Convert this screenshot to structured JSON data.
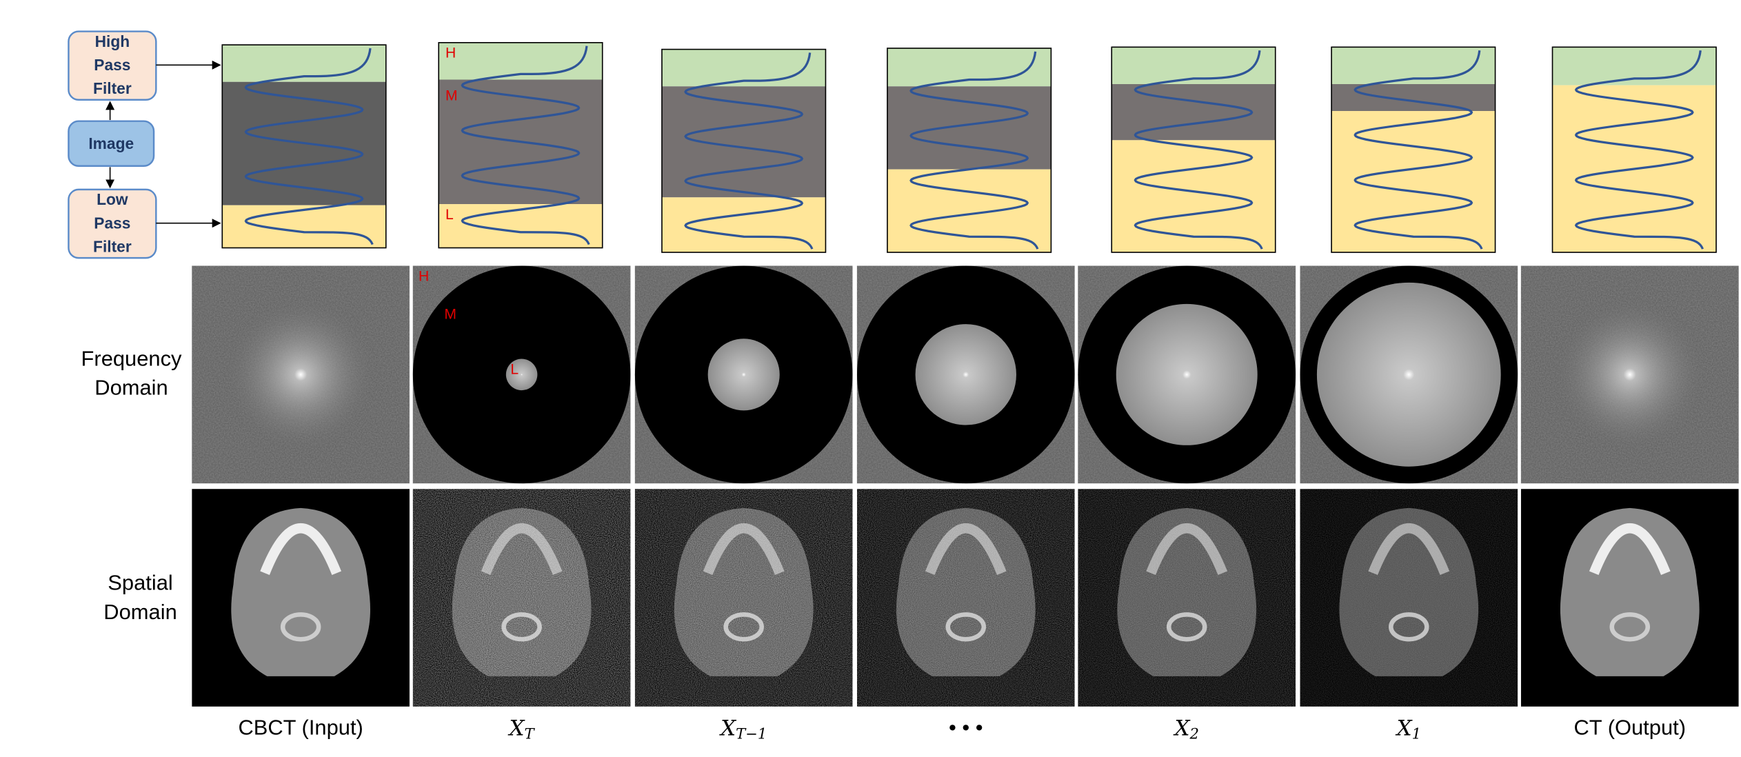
{
  "filter_boxes": {
    "high_pass": [
      "High",
      "Pass",
      "Filter"
    ],
    "image": "Image",
    "low_pass": [
      "Low",
      "Pass",
      "Filter"
    ]
  },
  "band_labels": [
    "H",
    "M",
    "L"
  ],
  "row_labels": {
    "frequency": [
      "Frequency",
      "Domain"
    ],
    "spatial": [
      "Spatial",
      "Domain"
    ]
  },
  "columns": [
    {
      "text": "CBCT (Input)"
    },
    {
      "base": "X",
      "sub": "T"
    },
    {
      "base": "X",
      "sub": "T−1"
    },
    {
      "text": "• • •"
    },
    {
      "base": "X",
      "sub": "2"
    },
    {
      "base": "X",
      "sub": "1"
    },
    {
      "text": "CT (Output)"
    }
  ]
}
